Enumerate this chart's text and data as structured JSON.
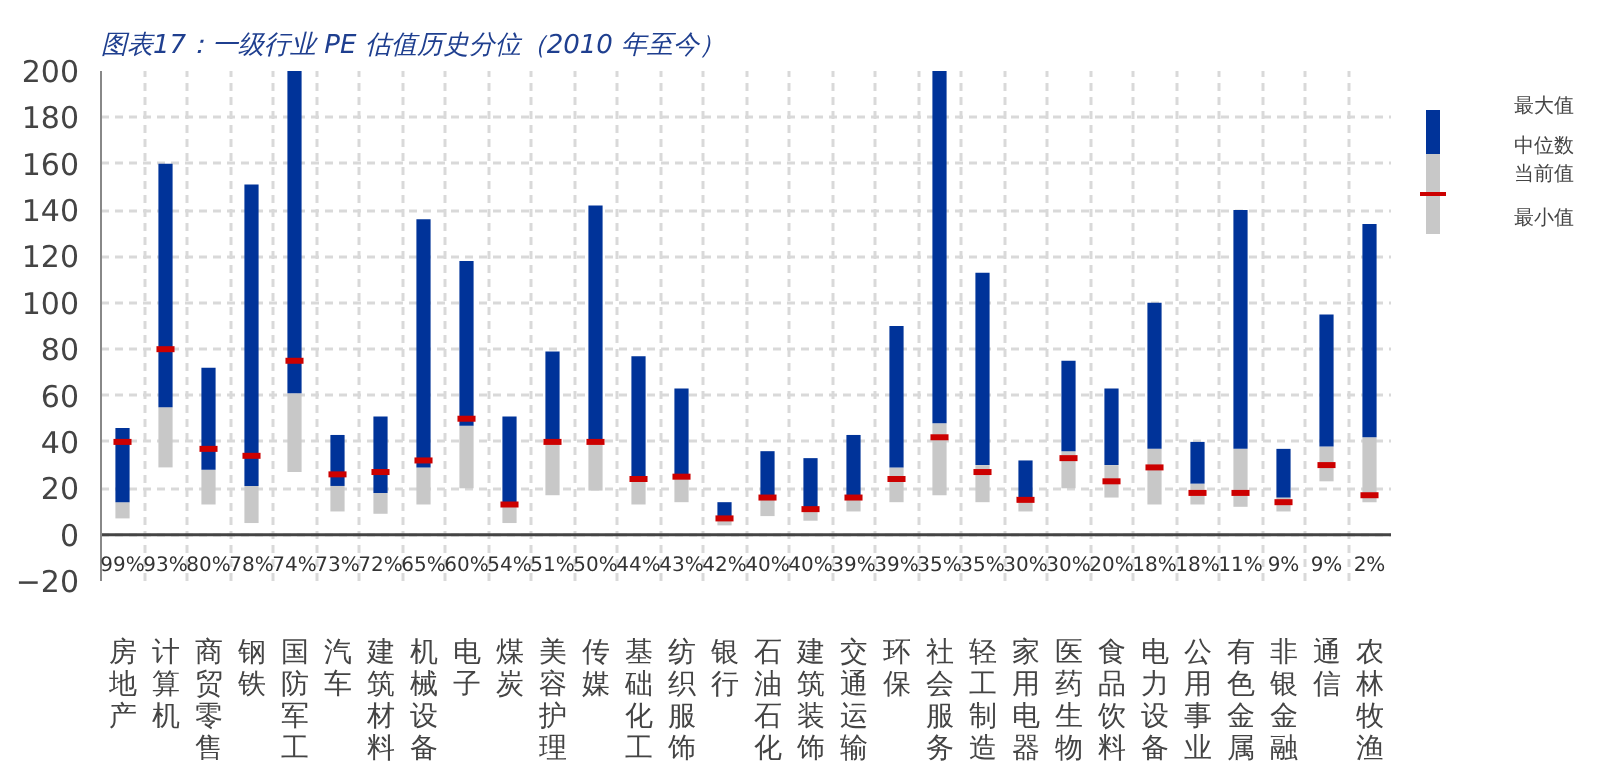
{
  "chart_data": {
    "type": "bar",
    "title": "图表17：一级行业 PE 估值历史分位（2010 年至今）",
    "categories": [
      "房地产",
      "计算机",
      "商贸零售",
      "钢铁",
      "国防军工",
      "汽车",
      "建筑材料",
      "机械设备",
      "电子",
      "煤炭",
      "美容护理",
      "传媒",
      "基础化工",
      "纺织服饰",
      "银行",
      "石油石化",
      "建筑装饰",
      "交通运输",
      "环保",
      "社会服务",
      "轻工制造",
      "家用电器",
      "医药生物",
      "食品饮料",
      "电力设备",
      "公用事业",
      "有色金属",
      "非银金融",
      "通信",
      "农林牧渔"
    ],
    "stacked": true,
    "series": [
      {
        "color": "#c8c8c8",
        "base": [
          7,
          29,
          13,
          5,
          27,
          10,
          9,
          13,
          20,
          5,
          17,
          19,
          13,
          14,
          4,
          8,
          6,
          10,
          14,
          17,
          14,
          10,
          20,
          16,
          13,
          13,
          12,
          10,
          23,
          14
        ],
        "values": [
          7,
          26,
          15,
          16,
          34,
          11,
          9,
          16,
          27,
          9,
          23,
          21,
          11,
          11,
          3,
          9,
          5,
          7,
          15,
          31,
          16,
          5,
          16,
          14,
          24,
          9,
          25,
          6,
          15,
          28
        ]
      },
      {
        "color": "#003399",
        "values": [
          32,
          105,
          44,
          130,
          139,
          22,
          33,
          107,
          71,
          37,
          39,
          102,
          53,
          38,
          7,
          19,
          22,
          26,
          61,
          152,
          83,
          17,
          39,
          33,
          63,
          18,
          103,
          21,
          57,
          92
        ]
      },
      {
        "type": "scatter",
        "color": "#cc0000",
        "values": [
          40,
          80,
          37,
          34,
          75,
          26,
          27,
          32,
          50,
          13,
          40,
          40,
          24,
          25,
          7,
          16,
          11,
          16,
          24,
          42,
          27,
          15,
          33,
          23,
          29,
          18,
          18,
          14,
          30,
          17
        ]
      }
    ],
    "ylim": [
      -20,
      200
    ],
    "yticks": [
      -20,
      0,
      20,
      40,
      60,
      80,
      100,
      120,
      140,
      160,
      180,
      200
    ],
    "grid": true,
    "annotations": [
      "99%",
      "93%",
      "80%",
      "78%",
      "74%",
      "73%",
      "72%",
      "65%",
      "60%",
      "54%",
      "51%",
      "50%",
      "44%",
      "43%",
      "42%",
      "40%",
      "40%",
      "39%",
      "39%",
      "35%",
      "35%",
      "30%",
      "30%",
      "20%",
      "18%",
      "18%",
      "11%",
      "9%",
      "9%",
      "2%",
      "最大值",
      "中位数",
      "当前值",
      "最小值"
    ]
  }
}
